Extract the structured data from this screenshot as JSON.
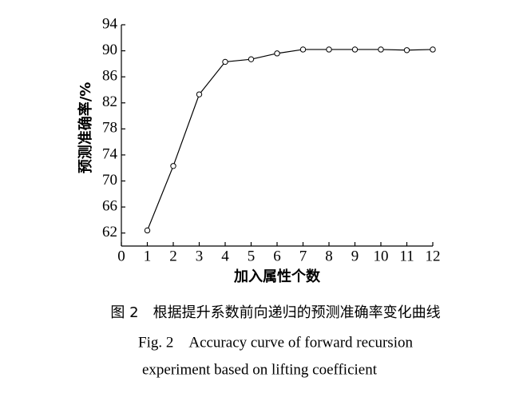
{
  "chart_data": {
    "type": "line",
    "x": [
      1,
      2,
      3,
      4,
      5,
      6,
      7,
      8,
      9,
      10,
      11,
      12
    ],
    "values": [
      62.4,
      72.3,
      83.3,
      88.3,
      88.7,
      89.6,
      90.2,
      90.2,
      90.2,
      90.2,
      90.1,
      90.2
    ],
    "color": "#000000",
    "xlim": [
      0,
      12
    ],
    "xticks": [
      0,
      1,
      2,
      3,
      4,
      5,
      6,
      7,
      8,
      9,
      10,
      11,
      12
    ],
    "ylim": [
      60,
      94
    ],
    "yticks": [
      62,
      66,
      70,
      74,
      78,
      82,
      86,
      90,
      94
    ],
    "xlabel": "加入属性个数",
    "ylabel": "预测准确率/%",
    "grid": false,
    "caption": [
      "图 2　根据提升系数前向递归的预测准确率变化曲线",
      "Fig. 2　Accuracy curve of forward recursion",
      "experiment based on lifting coefficient"
    ]
  }
}
